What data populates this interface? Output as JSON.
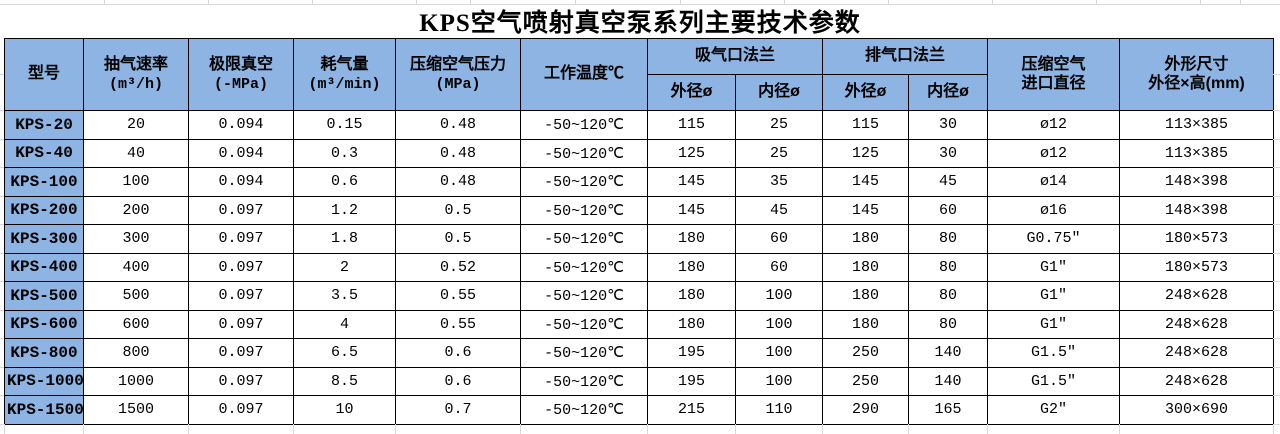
{
  "title": "KPS空气喷射真空泵系列主要技术参数",
  "colors": {
    "header_fill": "#8db4e2",
    "border": "#000000",
    "sheet_gridline": "#d9d9d9"
  },
  "table": {
    "header": {
      "model": "型号",
      "pumping_speed": {
        "label": "抽气速率",
        "unit": "(m³/h)"
      },
      "ultimate_vacuum": {
        "label": "极限真空",
        "unit": "(-MPa)"
      },
      "air_consumption": {
        "label": "耗气量",
        "unit": "(m³/min)"
      },
      "air_pressure": {
        "label": "压缩空气压力",
        "unit": "(MPa)"
      },
      "working_temp": "工作温度℃",
      "suction_flange": {
        "label": "吸气口法兰",
        "outer": "外径ø",
        "inner": "内径ø"
      },
      "exhaust_flange": {
        "label": "排气口法兰",
        "outer": "外径ø",
        "inner": "内径ø"
      },
      "air_inlet": {
        "line1": "压缩空气",
        "line2": "进口直径"
      },
      "dimensions": {
        "line1": "外形尺寸",
        "line2": "外径×高(mm)"
      }
    },
    "rows": [
      [
        "KPS-20",
        "20",
        "0.094",
        "0.15",
        "0.48",
        "-50~120℃",
        "115",
        "25",
        "115",
        "30",
        "ø12",
        "113×385"
      ],
      [
        "KPS-40",
        "40",
        "0.094",
        "0.3",
        "0.48",
        "-50~120℃",
        "125",
        "25",
        "125",
        "30",
        "ø12",
        "113×385"
      ],
      [
        "KPS-100",
        "100",
        "0.094",
        "0.6",
        "0.48",
        "-50~120℃",
        "145",
        "35",
        "145",
        "45",
        "ø14",
        "148×398"
      ],
      [
        "KPS-200",
        "200",
        "0.097",
        "1.2",
        "0.5",
        "-50~120℃",
        "145",
        "45",
        "145",
        "60",
        "ø16",
        "148×398"
      ],
      [
        "KPS-300",
        "300",
        "0.097",
        "1.8",
        "0.5",
        "-50~120℃",
        "180",
        "60",
        "180",
        "80",
        "G0.75″",
        "180×573"
      ],
      [
        "KPS-400",
        "400",
        "0.097",
        "2",
        "0.52",
        "-50~120℃",
        "180",
        "60",
        "180",
        "80",
        "G1″",
        "180×573"
      ],
      [
        "KPS-500",
        "500",
        "0.097",
        "3.5",
        "0.55",
        "-50~120℃",
        "180",
        "100",
        "180",
        "80",
        "G1″",
        "248×628"
      ],
      [
        "KPS-600",
        "600",
        "0.097",
        "4",
        "0.55",
        "-50~120℃",
        "180",
        "100",
        "180",
        "80",
        "G1″",
        "248×628"
      ],
      [
        "KPS-800",
        "800",
        "0.097",
        "6.5",
        "0.6",
        "-50~120℃",
        "195",
        "100",
        "250",
        "140",
        "G1.5″",
        "248×628"
      ],
      [
        "KPS-1000",
        "1000",
        "0.097",
        "8.5",
        "0.6",
        "-50~120℃",
        "195",
        "100",
        "250",
        "140",
        "G1.5″",
        "248×628"
      ],
      [
        "KPS-1500",
        "1500",
        "0.097",
        "10",
        "0.7",
        "-50~120℃",
        "215",
        "110",
        "290",
        "165",
        "G2″",
        "300×690"
      ]
    ]
  }
}
